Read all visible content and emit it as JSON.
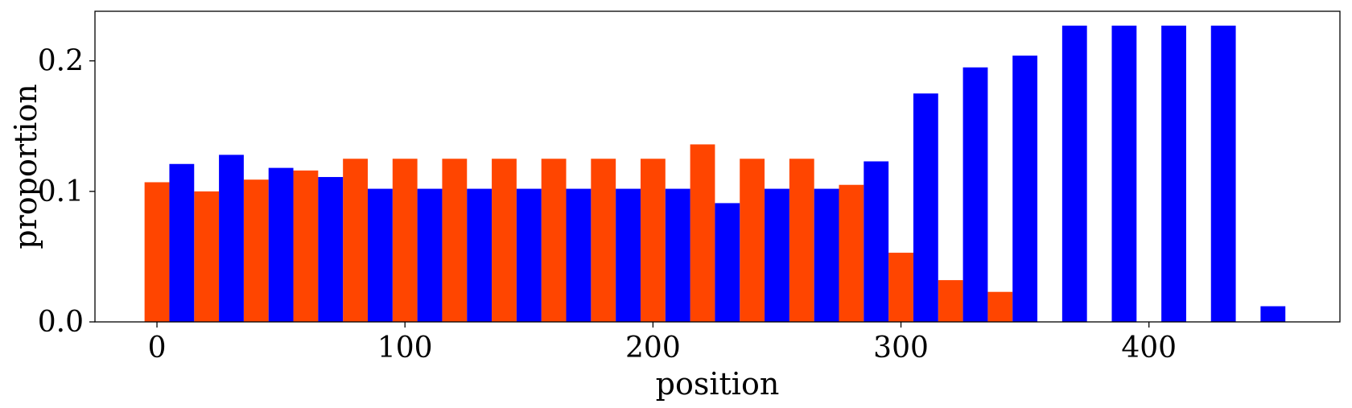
{
  "chart_data": {
    "type": "bar",
    "xlabel": "position",
    "ylabel": "proportion",
    "xlim": [
      -25,
      477
    ],
    "ylim": [
      0,
      0.238
    ],
    "bin_width": 10,
    "xticks": [
      0,
      100,
      200,
      300,
      400
    ],
    "xtick_labels": [
      "0",
      "100",
      "200",
      "300",
      "400"
    ],
    "yticks": [
      0.0,
      0.1,
      0.2
    ],
    "ytick_labels": [
      "0.0",
      "0.1",
      "0.2"
    ],
    "grid": false,
    "legend": "none",
    "series": [
      {
        "color": "#ff4500",
        "x": [
          0,
          20,
          40,
          60,
          80,
          100,
          120,
          140,
          160,
          180,
          200,
          220,
          240,
          260,
          280,
          300,
          320,
          340
        ],
        "values": [
          0.107,
          0.1,
          0.109,
          0.116,
          0.125,
          0.125,
          0.125,
          0.125,
          0.125,
          0.125,
          0.125,
          0.136,
          0.125,
          0.125,
          0.105,
          0.053,
          0.032,
          0.023
        ]
      },
      {
        "color": "#0000ff",
        "x": [
          10,
          30,
          50,
          70,
          90,
          110,
          130,
          150,
          170,
          190,
          210,
          230,
          250,
          270,
          290,
          310,
          330,
          350,
          370,
          390,
          410,
          430,
          450
        ],
        "values": [
          0.121,
          0.128,
          0.118,
          0.111,
          0.102,
          0.102,
          0.102,
          0.102,
          0.102,
          0.102,
          0.102,
          0.091,
          0.102,
          0.102,
          0.123,
          0.175,
          0.195,
          0.204,
          0.227,
          0.227,
          0.227,
          0.227,
          0.012
        ]
      }
    ]
  }
}
